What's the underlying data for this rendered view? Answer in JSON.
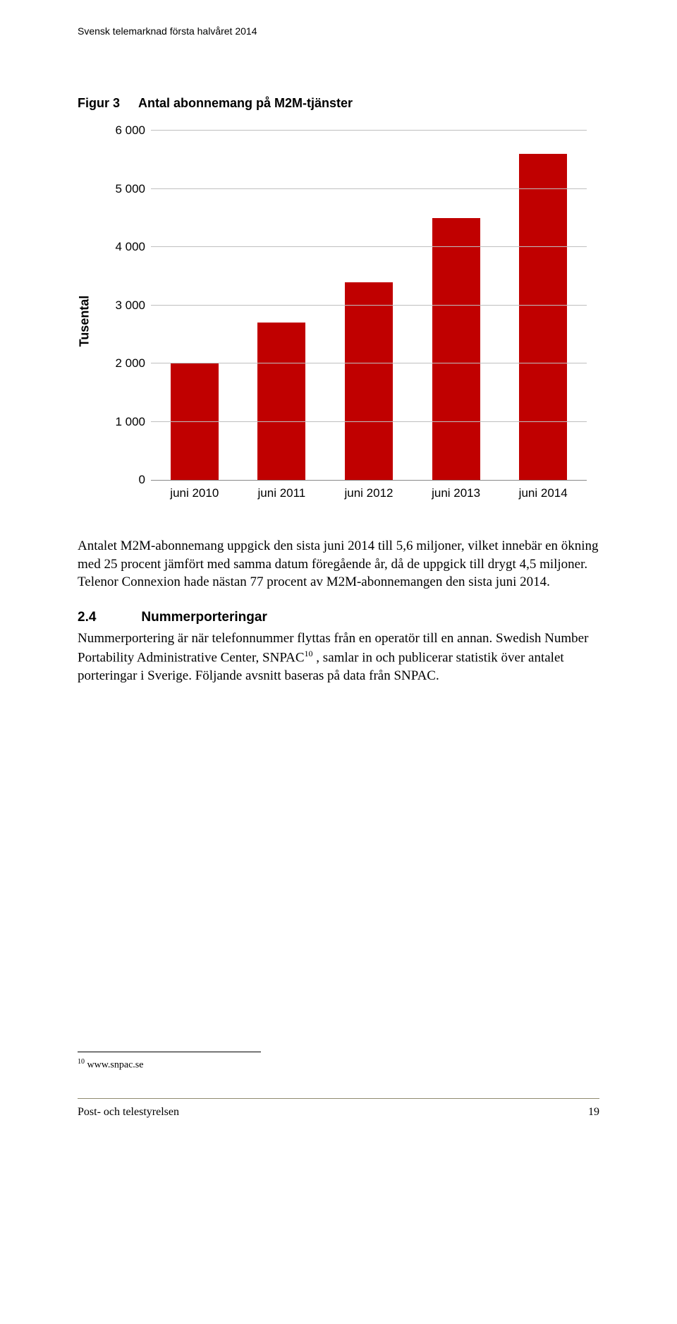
{
  "header": {
    "running_title": "Svensk telemarknad första halvåret 2014"
  },
  "figure": {
    "caption_prefix": "Figur 3",
    "caption_text": "Antal abonnemang på M2M-tjänster"
  },
  "chart": {
    "type": "bar",
    "ylabel": "Tusental",
    "ymax": 6000,
    "ytick_step": 1000,
    "ytick_labels": [
      "0",
      "1 000",
      "2 000",
      "3 000",
      "4 000",
      "5 000",
      "6 000"
    ],
    "categories": [
      "juni 2010",
      "juni 2011",
      "juni 2012",
      "juni 2013",
      "juni 2014"
    ],
    "values": [
      2000,
      2700,
      3400,
      4500,
      5600
    ],
    "bar_color": "#c00000",
    "grid_color": "#bfbfbf",
    "axis_color": "#888888",
    "bar_width_pct": 11,
    "tick_fontsize": 17,
    "ylabel_fontsize": 18
  },
  "paragraph1": "Antalet M2M-abonnemang uppgick den sista juni 2014 till 5,6 miljoner, vilket innebär en ökning med 25 procent jämfört med samma datum föregående år, då de uppgick till drygt 4,5 miljoner. Telenor Connexion hade nästan 77 procent av M2M-abonnemangen den sista juni 2014.",
  "section": {
    "number": "2.4",
    "title": "Nummerporteringar"
  },
  "paragraph2_a": "Nummerportering är när telefonnummer flyttas från en operatör till en annan. Swedish Number Portability Administrative Center, SNPAC",
  "paragraph2_fn": "10",
  "paragraph2_b": " , samlar in och publicerar statistik över antalet porteringar i Sverige. Följande avsnitt baseras på data från SNPAC.",
  "footnote": {
    "marker": "10",
    "text": " www.snpac.se"
  },
  "footer": {
    "publisher": "Post- och telestyrelsen",
    "page_number": "19"
  }
}
